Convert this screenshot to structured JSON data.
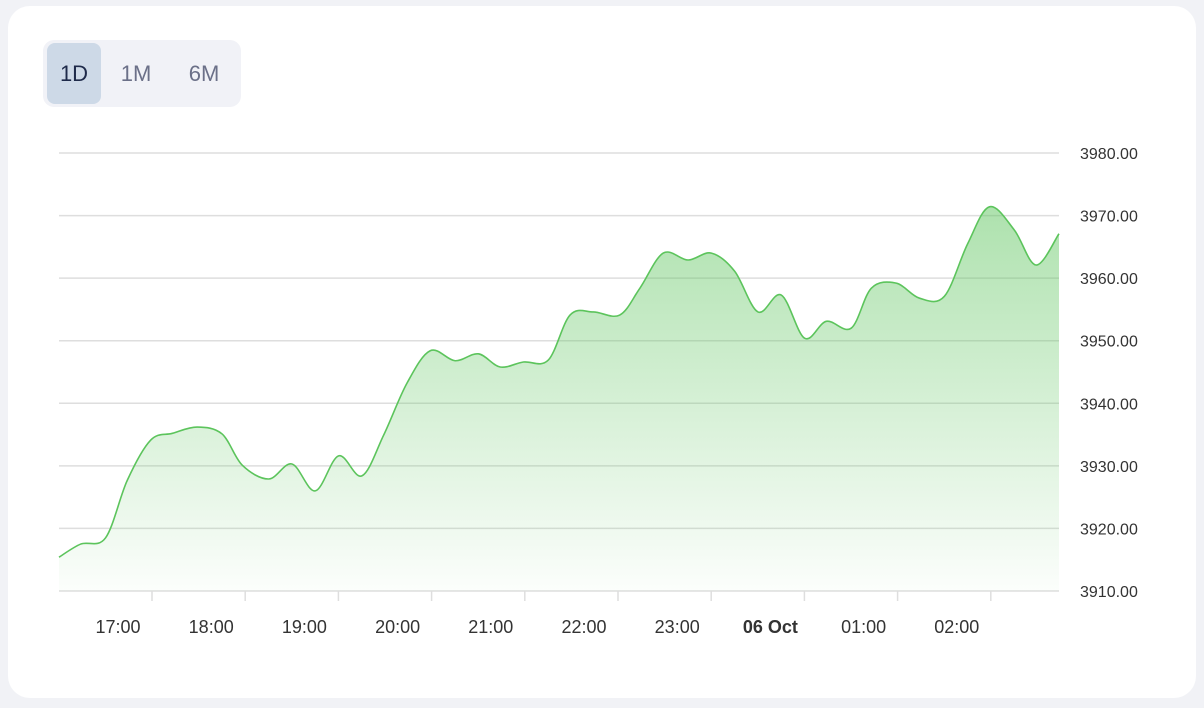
{
  "range_selector": {
    "options": [
      {
        "label": "1D",
        "active": true
      },
      {
        "label": "1M",
        "active": false
      },
      {
        "label": "6M",
        "active": false
      }
    ]
  },
  "chart_data": {
    "type": "area",
    "grid": true,
    "y_axis_position": "right",
    "ylim": [
      3910,
      3980
    ],
    "y_ticks": [
      "3910.00",
      "3920.00",
      "3930.00",
      "3940.00",
      "3950.00",
      "3960.00",
      "3970.00",
      "3980.00"
    ],
    "x_ticks": [
      {
        "label": "17:00",
        "time": "17:00",
        "bold": false
      },
      {
        "label": "18:00",
        "time": "18:00",
        "bold": false
      },
      {
        "label": "19:00",
        "time": "19:00",
        "bold": false
      },
      {
        "label": "20:00",
        "time": "20:00",
        "bold": false
      },
      {
        "label": "21:00",
        "time": "21:00",
        "bold": false
      },
      {
        "label": "22:00",
        "time": "22:00",
        "bold": false
      },
      {
        "label": "23:00",
        "time": "23:00",
        "bold": false
      },
      {
        "label": "06 Oct",
        "time": "00:00",
        "bold": true
      },
      {
        "label": "01:00",
        "time": "01:00",
        "bold": false
      },
      {
        "label": "02:00",
        "time": "02:00",
        "bold": false
      }
    ],
    "line_color": "#5cc45c",
    "series": [
      {
        "x": [
          "16:22",
          "16:36",
          "16:52",
          "17:06",
          "17:21",
          "17:35",
          "17:51",
          "18:07",
          "18:20",
          "18:37",
          "18:52",
          "19:07",
          "19:22",
          "19:37",
          "19:51",
          "20:06",
          "20:21",
          "20:37",
          "20:52",
          "21:06",
          "21:21",
          "21:37",
          "21:51",
          "22:06",
          "22:23",
          "22:36",
          "22:51",
          "23:07",
          "23:22",
          "23:37",
          "23:52",
          "00:07",
          "00:22",
          "00:36",
          "00:52",
          "01:05",
          "01:21",
          "01:36",
          "01:52",
          "02:07",
          "02:21",
          "02:37",
          "02:51",
          "03:06"
        ],
        "values": [
          3915.4,
          3917.5,
          3918.5,
          3927.7,
          3934.1,
          3935.2,
          3936.2,
          3935.1,
          3930.1,
          3927.9,
          3930.3,
          3926.0,
          3931.6,
          3928.4,
          3934.9,
          3943.2,
          3948.4,
          3946.8,
          3947.9,
          3945.8,
          3946.6,
          3946.9,
          3954.1,
          3954.6,
          3954.1,
          3958.4,
          3964.0,
          3962.9,
          3964.0,
          3961.1,
          3954.6,
          3957.3,
          3950.4,
          3953.1,
          3952.0,
          3958.4,
          3959.2,
          3956.8,
          3957.1,
          3965.5,
          3971.4,
          3967.7,
          3962.1,
          3967.1
        ]
      }
    ]
  }
}
